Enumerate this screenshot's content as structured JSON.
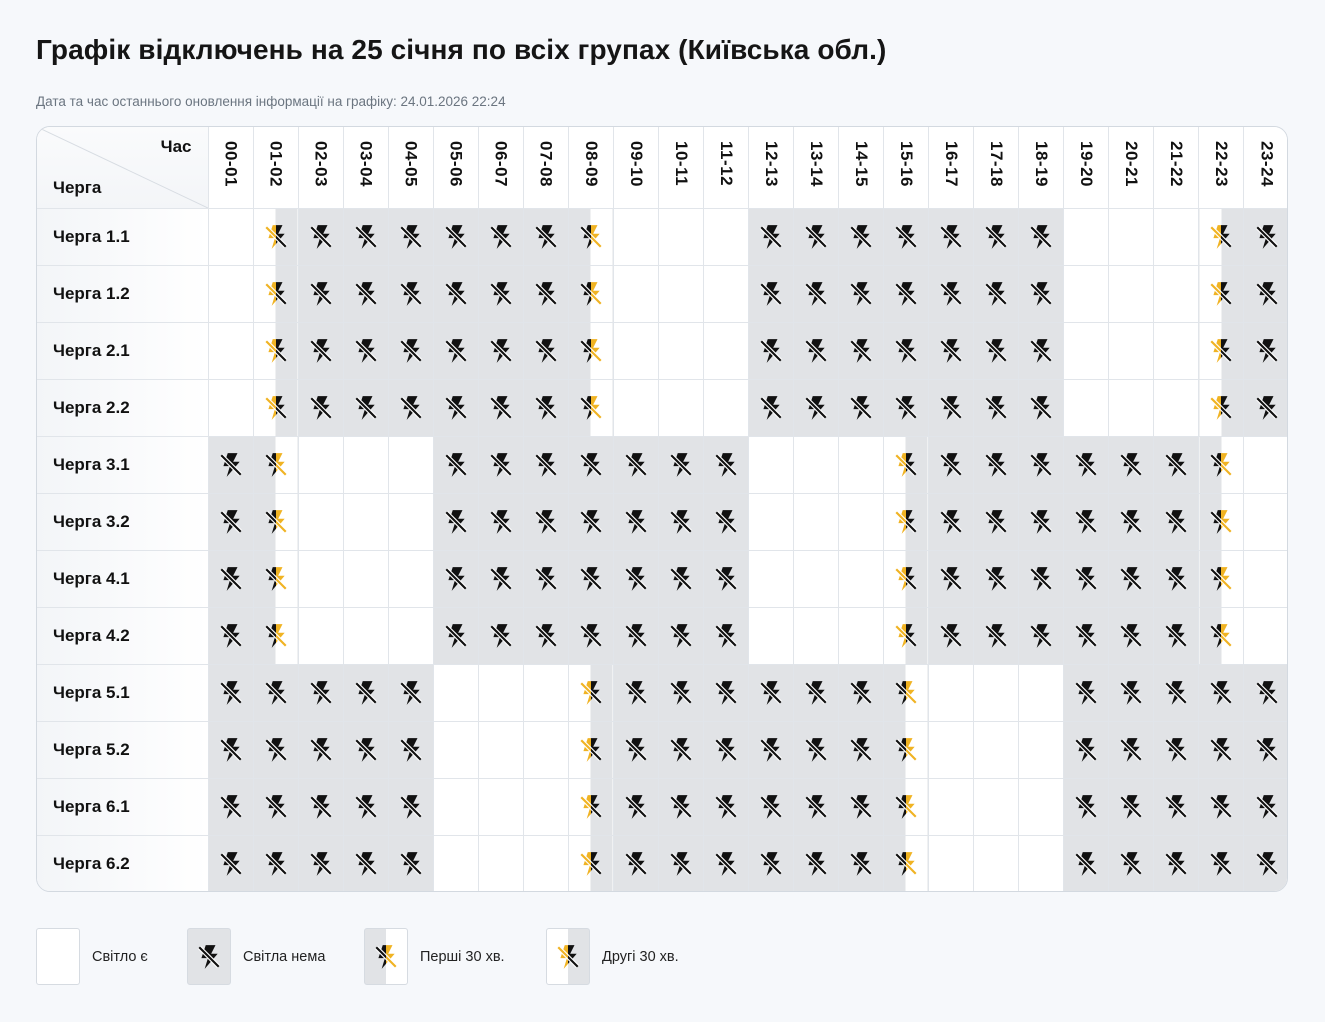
{
  "title": "Графік відключень на 25 січня по всіх групах (Київська обл.)",
  "update_line": "Дата та час останнього оновлення інформації на графіку: 24.01.2026 22:24",
  "header": {
    "hour_label": "Час",
    "queue_label": "Черга",
    "hours": [
      "00-01",
      "01-02",
      "02-03",
      "03-04",
      "04-05",
      "05-06",
      "06-07",
      "07-08",
      "08-09",
      "09-10",
      "10-11",
      "11-12",
      "12-13",
      "13-14",
      "14-15",
      "15-16",
      "16-17",
      "17-18",
      "18-19",
      "19-20",
      "20-21",
      "21-22",
      "22-23",
      "23-24"
    ]
  },
  "status_codes": {
    "y": "Світло є",
    "n": "Світла нема",
    "f": "Перші 30 хв.",
    "s": "Другі 30 хв."
  },
  "rows": [
    {
      "label": "Черга 1.1",
      "slots": [
        "y",
        "s",
        "n",
        "n",
        "n",
        "n",
        "n",
        "n",
        "f",
        "y",
        "y",
        "y",
        "n",
        "n",
        "n",
        "n",
        "n",
        "n",
        "n",
        "y",
        "y",
        "y",
        "s",
        "n"
      ]
    },
    {
      "label": "Черга 1.2",
      "slots": [
        "y",
        "s",
        "n",
        "n",
        "n",
        "n",
        "n",
        "n",
        "f",
        "y",
        "y",
        "y",
        "n",
        "n",
        "n",
        "n",
        "n",
        "n",
        "n",
        "y",
        "y",
        "y",
        "s",
        "n"
      ]
    },
    {
      "label": "Черга 2.1",
      "slots": [
        "y",
        "s",
        "n",
        "n",
        "n",
        "n",
        "n",
        "n",
        "f",
        "y",
        "y",
        "y",
        "n",
        "n",
        "n",
        "n",
        "n",
        "n",
        "n",
        "y",
        "y",
        "y",
        "s",
        "n"
      ]
    },
    {
      "label": "Черга 2.2",
      "slots": [
        "y",
        "s",
        "n",
        "n",
        "n",
        "n",
        "n",
        "n",
        "f",
        "y",
        "y",
        "y",
        "n",
        "n",
        "n",
        "n",
        "n",
        "n",
        "n",
        "y",
        "y",
        "y",
        "s",
        "n"
      ]
    },
    {
      "label": "Черга 3.1",
      "slots": [
        "n",
        "f",
        "y",
        "y",
        "y",
        "n",
        "n",
        "n",
        "n",
        "n",
        "n",
        "n",
        "y",
        "y",
        "y",
        "s",
        "n",
        "n",
        "n",
        "n",
        "n",
        "n",
        "f",
        "y"
      ]
    },
    {
      "label": "Черга 3.2",
      "slots": [
        "n",
        "f",
        "y",
        "y",
        "y",
        "n",
        "n",
        "n",
        "n",
        "n",
        "n",
        "n",
        "y",
        "y",
        "y",
        "s",
        "n",
        "n",
        "n",
        "n",
        "n",
        "n",
        "f",
        "y"
      ]
    },
    {
      "label": "Черга 4.1",
      "slots": [
        "n",
        "f",
        "y",
        "y",
        "y",
        "n",
        "n",
        "n",
        "n",
        "n",
        "n",
        "n",
        "y",
        "y",
        "y",
        "s",
        "n",
        "n",
        "n",
        "n",
        "n",
        "n",
        "f",
        "y"
      ]
    },
    {
      "label": "Черга 4.2",
      "slots": [
        "n",
        "f",
        "y",
        "y",
        "y",
        "n",
        "n",
        "n",
        "n",
        "n",
        "n",
        "n",
        "y",
        "y",
        "y",
        "s",
        "n",
        "n",
        "n",
        "n",
        "n",
        "n",
        "f",
        "y"
      ]
    },
    {
      "label": "Черга 5.1",
      "slots": [
        "n",
        "n",
        "n",
        "n",
        "n",
        "y",
        "y",
        "y",
        "s",
        "n",
        "n",
        "n",
        "n",
        "n",
        "n",
        "f",
        "y",
        "y",
        "y",
        "n",
        "n",
        "n",
        "n",
        "n"
      ]
    },
    {
      "label": "Черга 5.2",
      "slots": [
        "n",
        "n",
        "n",
        "n",
        "n",
        "y",
        "y",
        "y",
        "s",
        "n",
        "n",
        "n",
        "n",
        "n",
        "n",
        "f",
        "y",
        "y",
        "y",
        "n",
        "n",
        "n",
        "n",
        "n"
      ]
    },
    {
      "label": "Черга 6.1",
      "slots": [
        "n",
        "n",
        "n",
        "n",
        "n",
        "y",
        "y",
        "y",
        "s",
        "n",
        "n",
        "n",
        "n",
        "n",
        "n",
        "f",
        "y",
        "y",
        "y",
        "n",
        "n",
        "n",
        "n",
        "n"
      ]
    },
    {
      "label": "Черга 6.2",
      "slots": [
        "n",
        "n",
        "n",
        "n",
        "n",
        "y",
        "y",
        "y",
        "s",
        "n",
        "n",
        "n",
        "n",
        "n",
        "n",
        "f",
        "y",
        "y",
        "y",
        "n",
        "n",
        "n",
        "n",
        "n"
      ]
    }
  ],
  "legend": [
    {
      "code": "y",
      "label": "Світло є"
    },
    {
      "code": "n",
      "label": "Світла нема"
    },
    {
      "code": "f",
      "label": "Перші 30 хв."
    },
    {
      "code": "s",
      "label": "Другі 30 хв."
    }
  ],
  "icons": {
    "outage": "no-power-icon",
    "bolt_color": "#f0b323",
    "slash_color": "#111111"
  },
  "colors": {
    "off_bg": "#e1e3e6",
    "on_bg": "#ffffff",
    "accent_yellow": "#f0b323"
  }
}
